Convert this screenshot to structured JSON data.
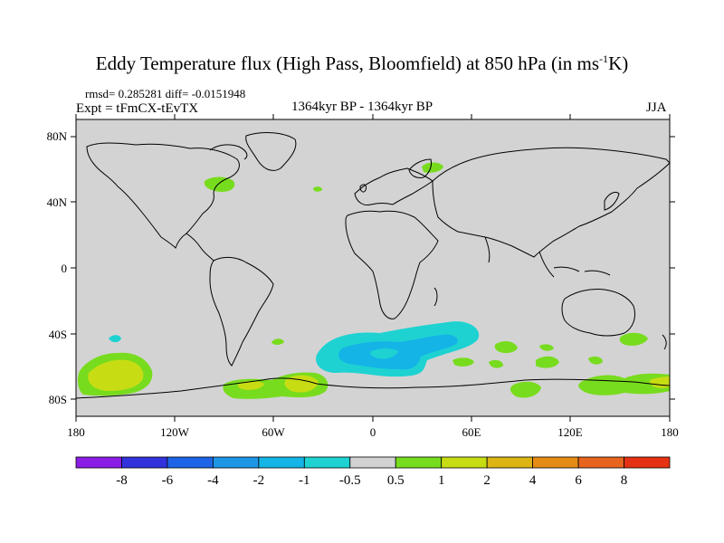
{
  "title": "Eddy Temperature flux (High Pass, Bloomfield) at 850 hPa (in ms",
  "title_sup": "-1",
  "title_end": "K)",
  "stats": "rmsd= 0.285281 diff= -0.0151948",
  "expt": "Expt = tFmCX-tEvTX",
  "period": "1364kyr BP - 1364kyr BP",
  "season": "JJA",
  "lat_labels": [
    "80N",
    "40N",
    "0",
    "40S",
    "80S"
  ],
  "lon_labels": [
    "180",
    "120W",
    "60W",
    "0",
    "60E",
    "120E",
    "180"
  ],
  "colorbar": {
    "labels": [
      "-8",
      "-6",
      "-4",
      "-2",
      "-1",
      "-0.5",
      "0.5",
      "1",
      "2",
      "4",
      "6",
      "8"
    ],
    "colors": [
      "#8a1ee6",
      "#3232dc",
      "#1e64e6",
      "#1e96e6",
      "#14b4e6",
      "#1ed2d2",
      "#d2d2d2",
      "#78dc1e",
      "#c8dc14",
      "#dcb414",
      "#e68c14",
      "#e6641e",
      "#e63214"
    ]
  },
  "colors": {
    "background_map": "#d3d3d3",
    "coast": "#000000"
  }
}
